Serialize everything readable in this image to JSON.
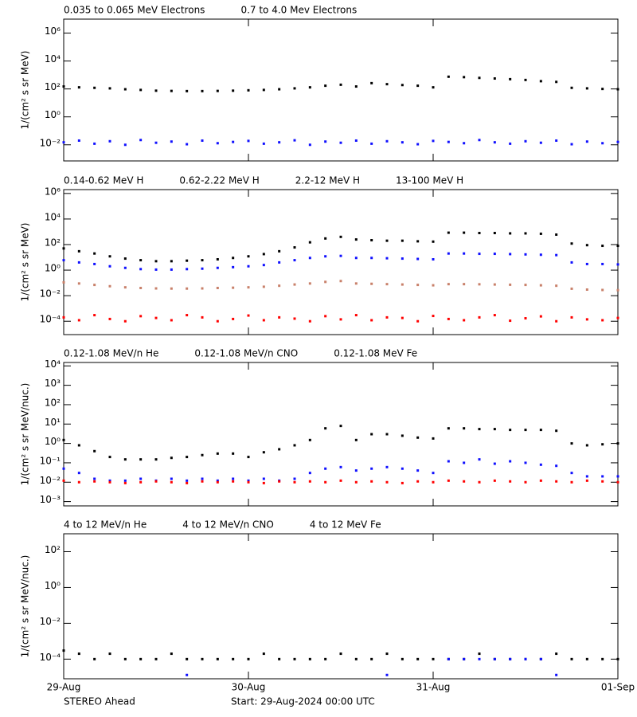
{
  "chart_data": [
    {
      "type": "scatter",
      "ylabel": "1/(cm² s sr MeV)",
      "ylog": true,
      "xlim": [
        0,
        72
      ],
      "ylim": [
        0.0007,
        10000000
      ],
      "yticks": [
        {
          "value": 0.01,
          "label": "10⁻²"
        },
        {
          "value": 1,
          "label": "10⁰"
        },
        {
          "value": 100,
          "label": "10²"
        },
        {
          "value": 10000,
          "label": "10⁴"
        },
        {
          "value": 1000000,
          "label": "10⁶"
        }
      ],
      "x": [
        0,
        2,
        4,
        6,
        8,
        10,
        12,
        14,
        16,
        18,
        20,
        22,
        24,
        26,
        28,
        30,
        32,
        34,
        36,
        38,
        40,
        42,
        44,
        46,
        48,
        50,
        52,
        54,
        56,
        58,
        60,
        62,
        64,
        66,
        68,
        70,
        72
      ],
      "series": [
        {
          "name": "0.035 to 0.065 MeV Electrons",
          "color": "#000000",
          "values": [
            150,
            130,
            120,
            110,
            95,
            85,
            75,
            72,
            70,
            70,
            72,
            75,
            80,
            85,
            95,
            110,
            130,
            170,
            200,
            150,
            260,
            220,
            190,
            170,
            130,
            750,
            700,
            620,
            560,
            500,
            440,
            360,
            320,
            120,
            110,
            100,
            95
          ]
        },
        {
          "name": "0.7 to 4.0 Mev Electrons",
          "color": "#1010ff",
          "values": [
            0.015,
            0.02,
            0.012,
            0.018,
            0.01,
            0.022,
            0.014,
            0.017,
            0.011,
            0.02,
            0.013,
            0.016,
            0.019,
            0.012,
            0.015,
            0.021,
            0.01,
            0.017,
            0.014,
            0.02,
            0.012,
            0.018,
            0.015,
            0.011,
            0.019,
            0.016,
            0.013,
            0.022,
            0.015,
            0.012,
            0.018,
            0.014,
            0.02,
            0.011,
            0.017,
            0.013,
            0.016
          ]
        }
      ]
    },
    {
      "type": "scatter",
      "ylabel": "1/(cm² s sr MeV)",
      "ylog": true,
      "xlim": [
        0,
        72
      ],
      "ylim": [
        9e-06,
        2000000
      ],
      "yticks": [
        {
          "value": 0.0001,
          "label": "10⁻⁴"
        },
        {
          "value": 0.01,
          "label": "10⁻²"
        },
        {
          "value": 1,
          "label": "10⁰"
        },
        {
          "value": 100,
          "label": "10²"
        },
        {
          "value": 10000,
          "label": "10⁴"
        },
        {
          "value": 1000000,
          "label": "10⁶"
        }
      ],
      "x": [
        0,
        2,
        4,
        6,
        8,
        10,
        12,
        14,
        16,
        18,
        20,
        22,
        24,
        26,
        28,
        30,
        32,
        34,
        36,
        38,
        40,
        42,
        44,
        46,
        48,
        50,
        52,
        54,
        56,
        58,
        60,
        62,
        64,
        66,
        68,
        70,
        72
      ],
      "series": [
        {
          "name": "0.14-0.62 MeV H",
          "color": "#000000",
          "values": [
            50,
            30,
            20,
            12,
            8,
            6,
            5,
            5,
            5.5,
            6,
            7,
            9,
            12,
            18,
            30,
            60,
            150,
            300,
            400,
            250,
            220,
            200,
            200,
            180,
            170,
            850,
            850,
            800,
            800,
            750,
            750,
            700,
            600,
            120,
            90,
            80,
            80
          ]
        },
        {
          "name": "0.62-2.22 MeV H",
          "color": "#1010ff",
          "values": [
            6,
            4,
            3,
            2,
            1.5,
            1.2,
            1.1,
            1.1,
            1.2,
            1.3,
            1.5,
            1.7,
            2,
            2.5,
            4,
            6,
            9,
            12,
            13,
            9,
            9,
            8.5,
            8,
            7.5,
            7,
            20,
            20,
            19,
            19,
            18,
            17,
            16,
            15,
            4,
            3,
            3,
            2.8
          ]
        },
        {
          "name": "2.2-12 MeV H",
          "color": "#c8806a",
          "values": [
            0.11,
            0.09,
            0.07,
            0.055,
            0.045,
            0.04,
            0.037,
            0.036,
            0.036,
            0.037,
            0.04,
            0.042,
            0.045,
            0.05,
            0.06,
            0.075,
            0.09,
            0.12,
            0.14,
            0.09,
            0.085,
            0.08,
            0.075,
            0.07,
            0.065,
            0.08,
            0.08,
            0.078,
            0.075,
            0.072,
            0.07,
            0.065,
            0.06,
            0.035,
            0.03,
            0.028,
            0.027
          ]
        },
        {
          "name": "13-100 MeV H",
          "color": "#ff0000",
          "values": [
            0.0002,
            0.00012,
            0.0003,
            0.00015,
            0.0001,
            0.00025,
            0.00018,
            0.00012,
            0.0003,
            0.0002,
            0.0001,
            0.00015,
            0.00028,
            0.00012,
            0.0002,
            0.00016,
            0.0001,
            0.00025,
            0.00014,
            0.0003,
            0.00012,
            0.0002,
            0.00018,
            0.0001,
            0.00026,
            0.00015,
            0.00012,
            0.0002,
            0.0003,
            0.00011,
            0.00017,
            0.00024,
            0.0001,
            0.0002,
            0.00014,
            0.00012,
            0.00018
          ]
        }
      ]
    },
    {
      "type": "scatter",
      "ylabel": "1/(cm² s sr MeV/nuc.)",
      "ylog": true,
      "xlim": [
        0,
        72
      ],
      "ylim": [
        0.0006,
        15000
      ],
      "yticks": [
        {
          "value": 0.001,
          "label": "10⁻³"
        },
        {
          "value": 0.01,
          "label": "10⁻²"
        },
        {
          "value": 0.1,
          "label": "10⁻¹"
        },
        {
          "value": 1,
          "label": "10⁰"
        },
        {
          "value": 10,
          "label": "10¹"
        },
        {
          "value": 100,
          "label": "10²"
        },
        {
          "value": 1000,
          "label": "10³"
        },
        {
          "value": 10000,
          "label": "10⁴"
        }
      ],
      "x": [
        0,
        2,
        4,
        6,
        8,
        10,
        12,
        14,
        16,
        18,
        20,
        22,
        24,
        26,
        28,
        30,
        32,
        34,
        36,
        38,
        40,
        42,
        44,
        46,
        48,
        50,
        52,
        54,
        56,
        58,
        60,
        62,
        64,
        66,
        68,
        70,
        72
      ],
      "series": [
        {
          "name": "0.12-1.08 MeV/n He",
          "color": "#000000",
          "values": [
            1.5,
            0.8,
            0.4,
            0.2,
            0.15,
            0.15,
            0.15,
            0.18,
            0.2,
            0.25,
            0.3,
            0.3,
            0.2,
            0.35,
            0.5,
            0.8,
            1.5,
            6,
            8,
            1.5,
            3,
            3,
            2.5,
            2,
            1.8,
            6,
            6,
            5.5,
            5.5,
            5,
            5,
            5,
            4.5,
            1,
            0.8,
            0.9,
            1
          ]
        },
        {
          "name": "0.12-1.08 MeV/n CNO",
          "color": "#1010ff",
          "values": [
            0.05,
            0.03,
            0.015,
            0.012,
            0.012,
            0.015,
            0.012,
            0.015,
            0.012,
            0.015,
            0.012,
            0.015,
            0.012,
            0.015,
            0.012,
            0.015,
            0.03,
            0.05,
            0.06,
            0.04,
            0.05,
            0.06,
            0.05,
            0.04,
            0.03,
            0.12,
            0.1,
            0.15,
            0.09,
            0.12,
            0.1,
            0.08,
            0.07,
            0.03,
            0.02,
            0.02,
            0.02
          ]
        },
        {
          "name": "0.12-1.08 MeV Fe",
          "color": "#ff0000",
          "values": [
            0.012,
            0.01,
            0.011,
            0.01,
            0.009,
            0.01,
            0.011,
            0.01,
            0.009,
            0.011,
            0.01,
            0.011,
            0.01,
            0.009,
            0.011,
            0.01,
            0.011,
            0.01,
            0.012,
            0.01,
            0.011,
            0.01,
            0.009,
            0.011,
            0.01,
            0.012,
            0.011,
            0.01,
            0.012,
            0.011,
            0.01,
            0.012,
            0.011,
            0.01,
            0.012,
            0.011,
            0.01
          ]
        }
      ]
    },
    {
      "type": "scatter",
      "ylabel": "1/(cm² s sr MeV/nuc.)",
      "ylog": true,
      "xlim": [
        0,
        72
      ],
      "ylim": [
        8e-06,
        1000
      ],
      "xticks": [
        {
          "value": 0,
          "label": "29-Aug"
        },
        {
          "value": 24,
          "label": "30-Aug"
        },
        {
          "value": 48,
          "label": "31-Aug"
        },
        {
          "value": 72,
          "label": "01-Sep"
        }
      ],
      "yticks": [
        {
          "value": 0.0001,
          "label": "10⁻⁴"
        },
        {
          "value": 0.01,
          "label": "10⁻²"
        },
        {
          "value": 1,
          "label": "10⁰"
        },
        {
          "value": 100,
          "label": "10²"
        }
      ],
      "x": [
        0,
        2,
        4,
        6,
        8,
        10,
        12,
        14,
        16,
        18,
        20,
        22,
        24,
        26,
        28,
        30,
        32,
        34,
        36,
        38,
        40,
        42,
        44,
        46,
        48,
        50,
        52,
        54,
        56,
        58,
        60,
        62,
        64,
        66,
        68,
        70,
        72
      ],
      "series": [
        {
          "name": "4 to 12 MeV/n He",
          "color": "#000000",
          "values": [
            0.0003,
            0.0002,
            0.0001,
            0.0002,
            0.0001,
            0.0001,
            0.0001,
            0.0002,
            0.0001,
            0.0001,
            0.0001,
            0.0001,
            0.0001,
            0.0002,
            0.0001,
            0.0001,
            0.0001,
            0.0001,
            0.0002,
            0.0001,
            0.0001,
            0.0002,
            0.0001,
            0.0001,
            0.0001,
            0.0001,
            0.0001,
            0.0002,
            0.0001,
            0.0001,
            0.0001,
            0.0001,
            0.0002,
            0.0001,
            0.0001,
            0.0001,
            0.0001
          ]
        },
        {
          "name": "4 to 12 MeV/n CNO",
          "color": "#1010ff",
          "values": [
            null,
            null,
            null,
            null,
            null,
            null,
            null,
            null,
            1.3e-05,
            null,
            null,
            null,
            null,
            null,
            null,
            null,
            null,
            null,
            null,
            null,
            null,
            1.3e-05,
            null,
            null,
            null,
            0.0001,
            0.0001,
            0.0001,
            0.0001,
            0.0001,
            0.0001,
            0.0001,
            1.3e-05,
            null,
            null,
            null,
            null
          ]
        },
        {
          "name": "4 to 12 MeV Fe",
          "color": "#ff0000",
          "values": [
            null,
            null,
            null,
            null,
            null,
            null,
            null,
            null,
            null,
            null,
            null,
            null,
            null,
            null,
            null,
            null,
            null,
            null,
            null,
            null,
            null,
            null,
            null,
            null,
            null,
            null,
            null,
            null,
            null,
            null,
            null,
            null,
            null,
            null,
            null,
            null,
            null
          ]
        }
      ]
    }
  ],
  "source": "STEREO Ahead",
  "start": "Start: 29-Aug-2024 00:00 UTC"
}
